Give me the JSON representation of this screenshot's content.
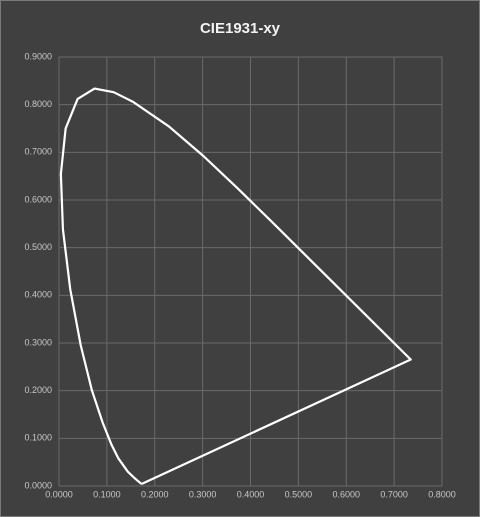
{
  "chart_data": {
    "type": "line",
    "title": "CIE1931-xy",
    "x": [
      0.1741,
      0.1733,
      0.1714,
      0.1644,
      0.1566,
      0.144,
      0.1241,
      0.1096,
      0.0913,
      0.0687,
      0.0454,
      0.0235,
      0.0082,
      0.0039,
      0.0139,
      0.0389,
      0.0743,
      0.1142,
      0.1547,
      0.2296,
      0.3016,
      0.3731,
      0.4441,
      0.5125,
      0.5752,
      0.627,
      0.6915,
      0.719,
      0.73,
      0.7347,
      0.1741
    ],
    "values": [
      0.005,
      0.0048,
      0.0051,
      0.0109,
      0.0177,
      0.0297,
      0.0578,
      0.0868,
      0.1327,
      0.2007,
      0.295,
      0.4127,
      0.5384,
      0.6548,
      0.7502,
      0.812,
      0.8338,
      0.8262,
      0.8059,
      0.7543,
      0.6923,
      0.6245,
      0.5547,
      0.4866,
      0.4242,
      0.3725,
      0.3083,
      0.2809,
      0.27,
      0.2653,
      0.005
    ],
    "color": "#ffffff",
    "xlim": [
      0,
      0.8
    ],
    "xticks": [
      {
        "value": 0,
        "label": "0.0000"
      },
      {
        "value": 0.1,
        "label": "0.1000"
      },
      {
        "value": 0.2,
        "label": "0.2000"
      },
      {
        "value": 0.3,
        "label": "0.3000"
      },
      {
        "value": 0.4,
        "label": "0.4000"
      },
      {
        "value": 0.5,
        "label": "0.5000"
      },
      {
        "value": 0.6,
        "label": "0.6000"
      },
      {
        "value": 0.7,
        "label": "0.7000"
      },
      {
        "value": 0.8,
        "label": "0.8000"
      }
    ],
    "ylim": [
      0,
      0.9
    ],
    "yticks": [
      {
        "value": 0,
        "label": "0.0000"
      },
      {
        "value": 0.1,
        "label": "0.1000"
      },
      {
        "value": 0.2,
        "label": "0.2000"
      },
      {
        "value": 0.3,
        "label": "0.3000"
      },
      {
        "value": 0.4,
        "label": "0.4000"
      },
      {
        "value": 0.5,
        "label": "0.5000"
      },
      {
        "value": 0.6,
        "label": "0.6000"
      },
      {
        "value": 0.7,
        "label": "0.7000"
      },
      {
        "value": 0.8,
        "label": "0.8000"
      },
      {
        "value": 0.9,
        "label": "0.9000"
      }
    ],
    "grid": true
  }
}
